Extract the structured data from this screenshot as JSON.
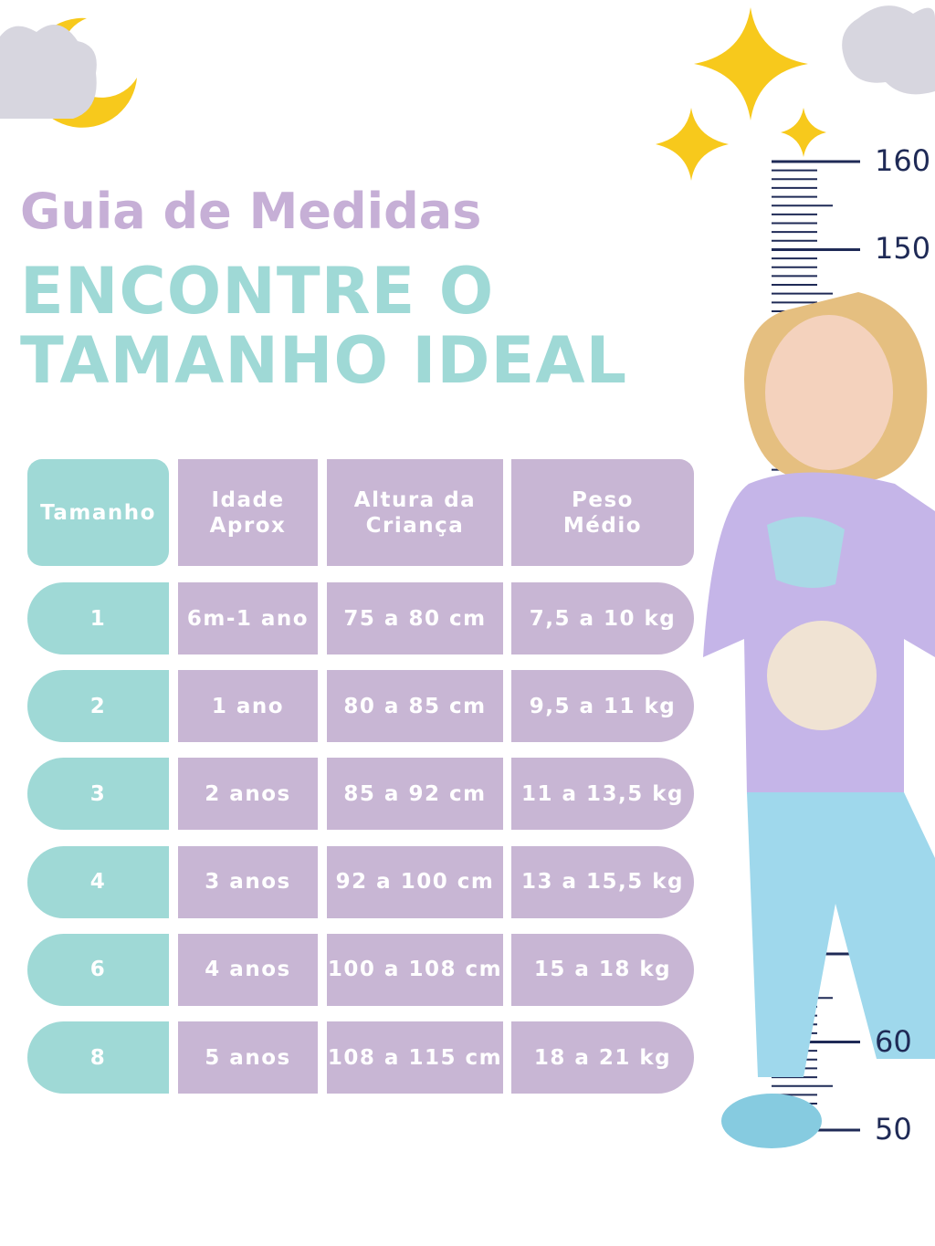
{
  "header": {
    "subtitle": "Guia de Medidas",
    "title_lines": [
      "ENCONTRE O",
      "TAMANHO IDEAL"
    ]
  },
  "table": {
    "header": [
      [
        "Tamanho"
      ],
      [
        "Idade",
        "Aprox"
      ],
      [
        "Altura da",
        "Criança"
      ],
      [
        "Peso",
        "Médio"
      ]
    ],
    "rows": [
      [
        "1",
        "6m-1 ano",
        "75 a 80 cm",
        "7,5 a 10 kg"
      ],
      [
        "2",
        "1 ano",
        "80 a 85 cm",
        "9,5 a 11 kg"
      ],
      [
        "3",
        "2 anos",
        "85 a 92 cm",
        "11 a 13,5 kg"
      ],
      [
        "4",
        "3 anos",
        "92 a 100 cm",
        "13 a 15,5 kg"
      ],
      [
        "6",
        "4 anos",
        "100 a 108 cm",
        "15 a 18 kg"
      ],
      [
        "8",
        "5 anos",
        "108 a 115 cm",
        "18 a 21 kg"
      ]
    ]
  },
  "ruler": {
    "labels": [
      "160",
      "150",
      "60",
      "50"
    ]
  }
}
